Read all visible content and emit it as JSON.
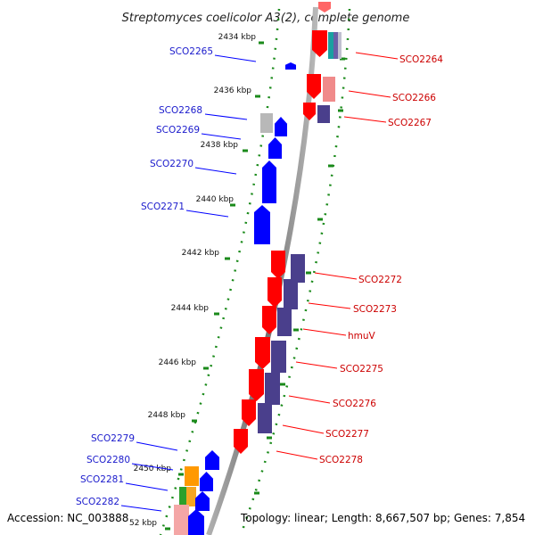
{
  "title": "Streptomyces coelicolor A3(2), complete genome",
  "accession": "Accession: NC_003888",
  "topology": "Topology: linear; Length: 8,667,507 bp; Genes: 7,854",
  "colors": {
    "forward": "#ff0000",
    "reverse": "#0000ff",
    "label_fwd": "#cc0000",
    "label_rev": "#1a1acc",
    "ruler_tick": "#1a8a1a",
    "backbone": "#8a8a8a",
    "purple": "#4a3f8c"
  },
  "ruler": [
    {
      "label": "2434 kbp"
    },
    {
      "label": "2436 kbp"
    },
    {
      "label": "2438 kbp"
    },
    {
      "label": "2440 kbp"
    },
    {
      "label": "2442 kbp"
    },
    {
      "label": "2444 kbp"
    },
    {
      "label": "2446 kbp"
    },
    {
      "label": "2448 kbp"
    },
    {
      "label": "2450 kbp"
    },
    {
      "label": "52 kbp"
    }
  ],
  "genes_forward": [
    {
      "name": "SCO2264"
    },
    {
      "name": "SCO2266"
    },
    {
      "name": "SCO2267"
    },
    {
      "name": "SCO2272"
    },
    {
      "name": "SCO2273"
    },
    {
      "name": "hmuV"
    },
    {
      "name": "SCO2275"
    },
    {
      "name": "SCO2276"
    },
    {
      "name": "SCO2277"
    },
    {
      "name": "SCO2278"
    }
  ],
  "genes_reverse": [
    {
      "name": "SCO2265"
    },
    {
      "name": "SCO2268"
    },
    {
      "name": "SCO2269"
    },
    {
      "name": "SCO2270"
    },
    {
      "name": "SCO2271"
    },
    {
      "name": "SCO2279"
    },
    {
      "name": "SCO2280"
    },
    {
      "name": "SCO2281"
    },
    {
      "name": "SCO2282"
    }
  ]
}
